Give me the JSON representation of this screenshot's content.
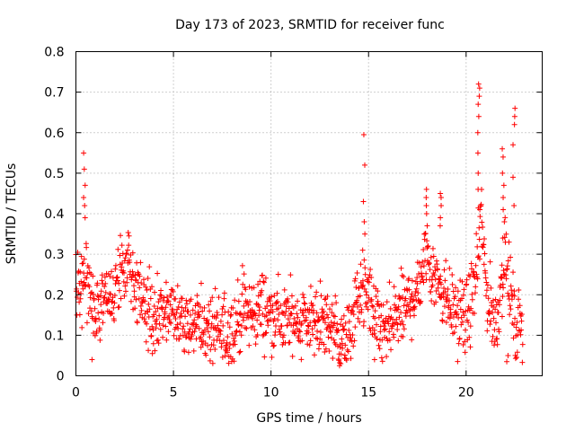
{
  "chart_data": {
    "type": "scatter",
    "title": "Day 173 of 2023, SRMTID for receiver func",
    "xlabel": "GPS time / hours",
    "ylabel": "SRMTID / TECUs",
    "xlim": [
      0,
      23.9
    ],
    "ylim": [
      0,
      0.8
    ],
    "xticks": [
      0,
      5,
      10,
      15,
      20
    ],
    "yticks": [
      0,
      0.1,
      0.2,
      0.3,
      0.4,
      0.5,
      0.6,
      0.7,
      0.8
    ],
    "xtick_labels": [
      "0",
      "5",
      "10",
      "15",
      "20"
    ],
    "ytick_labels": [
      "0",
      "0.1",
      "0.2",
      "0.3",
      "0.4",
      "0.5",
      "0.6",
      "0.7",
      "0.8"
    ],
    "grid": true,
    "marker": "+",
    "color": "#ff0000",
    "trend": [
      [
        0.0,
        0.21
      ],
      [
        0.5,
        0.24
      ],
      [
        1.0,
        0.17
      ],
      [
        1.5,
        0.2
      ],
      [
        2.0,
        0.19
      ],
      [
        2.5,
        0.27
      ],
      [
        3.0,
        0.24
      ],
      [
        3.5,
        0.18
      ],
      [
        4.0,
        0.14
      ],
      [
        4.5,
        0.15
      ],
      [
        5.0,
        0.16
      ],
      [
        5.5,
        0.14
      ],
      [
        6.0,
        0.15
      ],
      [
        6.5,
        0.12
      ],
      [
        7.0,
        0.11
      ],
      [
        7.5,
        0.1
      ],
      [
        8.0,
        0.11
      ],
      [
        8.5,
        0.16
      ],
      [
        9.0,
        0.15
      ],
      [
        9.5,
        0.17
      ],
      [
        10.0,
        0.15
      ],
      [
        10.5,
        0.14
      ],
      [
        11.0,
        0.14
      ],
      [
        11.5,
        0.14
      ],
      [
        12.0,
        0.14
      ],
      [
        12.5,
        0.13
      ],
      [
        13.0,
        0.13
      ],
      [
        13.5,
        0.08
      ],
      [
        14.0,
        0.1
      ],
      [
        14.5,
        0.2
      ],
      [
        15.0,
        0.2
      ],
      [
        15.5,
        0.11
      ],
      [
        16.0,
        0.11
      ],
      [
        16.5,
        0.15
      ],
      [
        17.0,
        0.17
      ],
      [
        17.5,
        0.22
      ],
      [
        18.0,
        0.3
      ],
      [
        18.5,
        0.24
      ],
      [
        19.0,
        0.2
      ],
      [
        19.5,
        0.15
      ],
      [
        20.0,
        0.14
      ],
      [
        20.5,
        0.23
      ],
      [
        20.8,
        0.4
      ],
      [
        21.0,
        0.22
      ],
      [
        21.5,
        0.12
      ],
      [
        22.0,
        0.3
      ],
      [
        22.5,
        0.12
      ],
      [
        22.9,
        0.14
      ]
    ],
    "spread": 0.045,
    "spikes": [
      {
        "x": 0.45,
        "values": [
          0.55,
          0.51,
          0.47,
          0.44,
          0.42,
          0.39
        ]
      },
      {
        "x": 14.75,
        "values": [
          0.595,
          0.52,
          0.43,
          0.38,
          0.35,
          0.31
        ]
      },
      {
        "x": 18.0,
        "values": [
          0.46,
          0.44,
          0.42,
          0.4,
          0.37
        ]
      },
      {
        "x": 18.7,
        "values": [
          0.45,
          0.44,
          0.42,
          0.39,
          0.37
        ]
      },
      {
        "x": 20.65,
        "values": [
          0.72,
          0.71,
          0.69,
          0.67,
          0.64,
          0.6,
          0.55,
          0.5,
          0.46,
          0.41
        ]
      },
      {
        "x": 21.9,
        "values": [
          0.56,
          0.54,
          0.5,
          0.47,
          0.44,
          0.41,
          0.38,
          0.34
        ]
      },
      {
        "x": 22.45,
        "values": [
          0.66,
          0.64,
          0.62,
          0.57,
          0.49,
          0.42
        ]
      },
      {
        "x": 0.8,
        "values": [
          0.04
        ]
      },
      {
        "x": 15.3,
        "values": [
          0.04
        ]
      },
      {
        "x": 13.55,
        "values": [
          0.025,
          0.03
        ]
      },
      {
        "x": 22.1,
        "values": [
          0.035,
          0.05
        ]
      }
    ]
  }
}
